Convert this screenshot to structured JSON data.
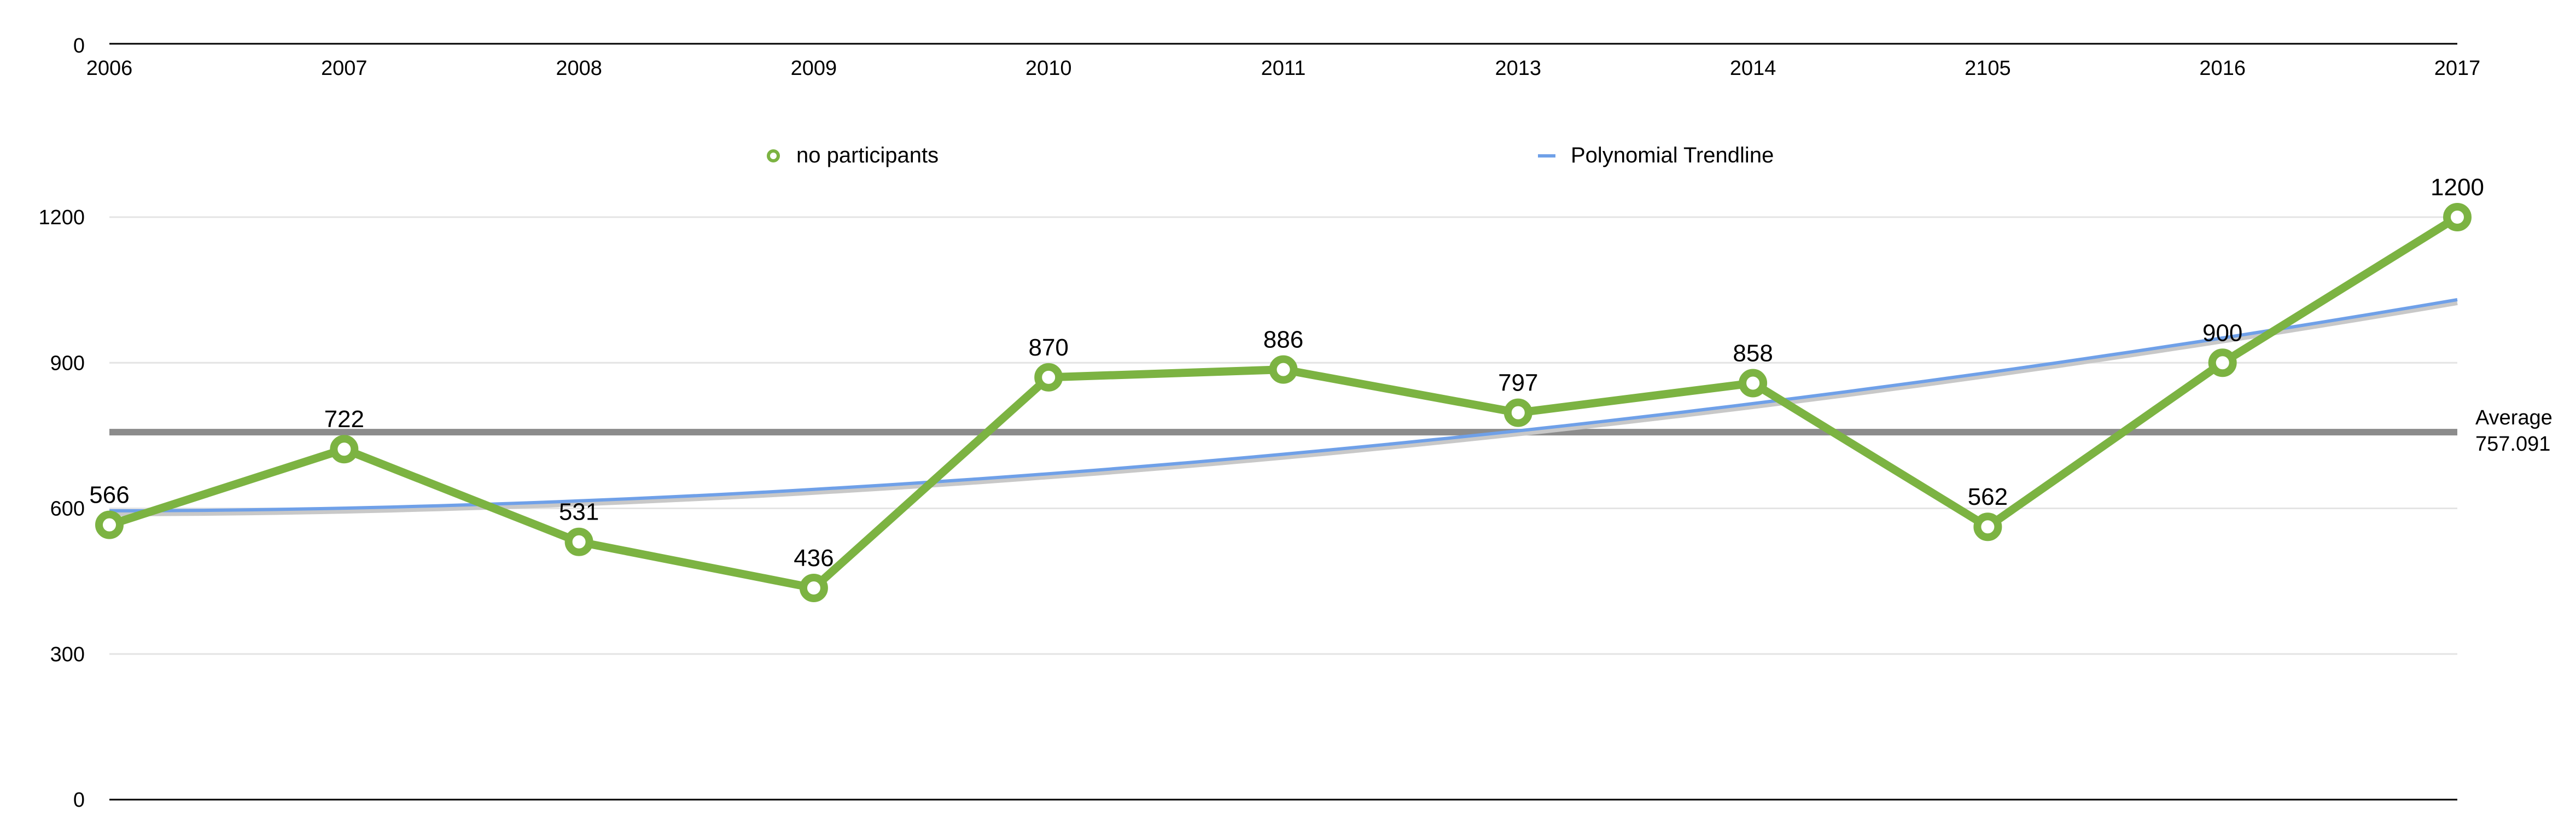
{
  "chart_data": {
    "type": "line",
    "top_axis": {
      "y_label": "0",
      "categories": [
        "2006",
        "2007",
        "2008",
        "2009",
        "2010",
        "2011",
        "2013",
        "2014",
        "2105",
        "2016",
        "2017"
      ]
    },
    "categories": [
      "2006",
      "2007",
      "2008",
      "2009",
      "2010",
      "2011",
      "2013",
      "2014",
      "2105",
      "2016",
      "2017"
    ],
    "series": [
      {
        "name": "no participants",
        "values": [
          566,
          722,
          531,
          436,
          870,
          886,
          797,
          858,
          562,
          900,
          1200
        ],
        "color": "#7cb342"
      }
    ],
    "trendline": {
      "name": "Polynomial Trendline",
      "type": "polynomial",
      "start": 595,
      "end": 1030,
      "color": "#6fa0e8"
    },
    "average": {
      "label": "Average",
      "value": "757.091",
      "numeric": 757.091,
      "color": "#8c8c8c"
    },
    "y_ticks": [
      0,
      300,
      600,
      900,
      1200
    ],
    "ylim": [
      0,
      1200
    ],
    "grid": true,
    "legend_position": "top"
  }
}
